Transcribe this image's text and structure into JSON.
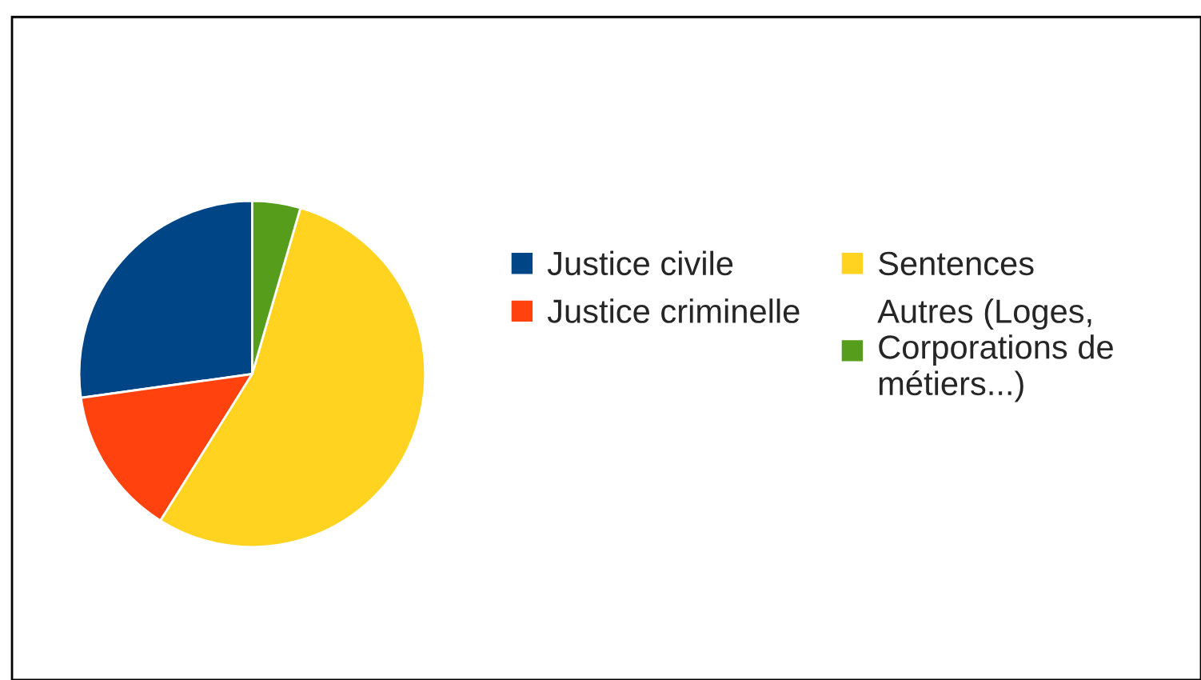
{
  "chart_data": {
    "type": "pie",
    "categories": [
      "Justice civile",
      "Justice criminelle",
      "Sentences",
      "Autres (Loges,\nCorporations de\nmétiers...)"
    ],
    "values": [
      27.2,
      13.9,
      54.4,
      4.5
    ],
    "colors": [
      "#004586",
      "#ff420e",
      "#ffd320",
      "#579d1c"
    ],
    "legend": "right"
  }
}
